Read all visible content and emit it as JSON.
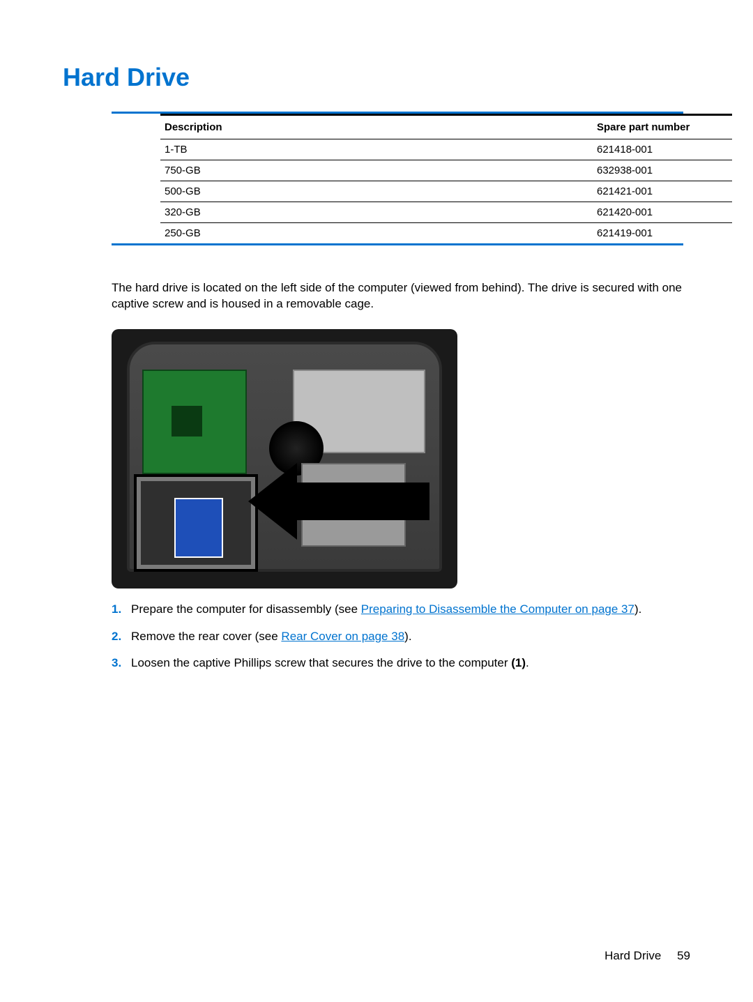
{
  "heading": {
    "text": "Hard Drive",
    "color": "#0073cf"
  },
  "table": {
    "border_color": "#0073cf",
    "columns": [
      "Description",
      "Spare part number"
    ],
    "rows": [
      [
        "1-TB",
        "621418-001"
      ],
      [
        "750-GB",
        "632938-001"
      ],
      [
        "500-GB",
        "621421-001"
      ],
      [
        "320-GB",
        "621420-001"
      ],
      [
        "250-GB",
        "621419-001"
      ]
    ]
  },
  "intro_text": "The hard drive is located on the left side of the computer (viewed from behind). The drive is secured with one captive screw and is housed in a removable cage.",
  "figure": {
    "background_color": "#1a1a1a",
    "board_color": "#1e7a2e",
    "hdd_label_color": "#1e4fb8",
    "arrow_color": "#000000"
  },
  "link_color": "#0073cf",
  "steps": [
    {
      "num": "1.",
      "pre": "Prepare the computer for disassembly (see ",
      "link": "Preparing to Disassemble the Computer on page 37",
      "post": ")."
    },
    {
      "num": "2.",
      "pre": "Remove the rear cover (see ",
      "link": "Rear Cover on page 38",
      "post": ")."
    },
    {
      "num": "3.",
      "pre": "Loosen the captive Phillips screw that secures the drive to the computer ",
      "bold_post": "(1)",
      "post": "."
    }
  ],
  "footer": {
    "section": "Hard Drive",
    "page": "59"
  }
}
